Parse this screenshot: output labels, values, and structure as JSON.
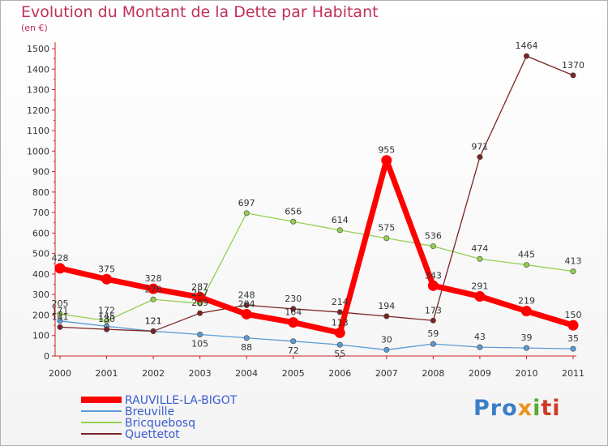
{
  "title": "Evolution du Montant de la Dette par Habitant",
  "subtitle": "(en €)",
  "logo": [
    "Pro",
    "x",
    "i",
    "ti"
  ],
  "chart_data": {
    "type": "line",
    "x": [
      "2000",
      "2001",
      "2002",
      "2003",
      "2004",
      "2005",
      "2006",
      "2007",
      "2008",
      "2009",
      "2010",
      "2011"
    ],
    "ylim": [
      0,
      1500
    ],
    "yticks": [
      0,
      100,
      200,
      300,
      400,
      500,
      600,
      700,
      800,
      900,
      1000,
      1100,
      1200,
      1300,
      1400,
      1500
    ],
    "grid": false,
    "legend_position": "bottom-left",
    "series": [
      {
        "name": "RAUVILLE-LA-BIGOT",
        "color": "#ff0000",
        "values": [
          428,
          375,
          328,
          287,
          204,
          164,
          113,
          955,
          343,
          291,
          219,
          150
        ]
      },
      {
        "name": "Breuville",
        "color": "#5b9bd5",
        "values": [
          171,
          145,
          121,
          105,
          88,
          72,
          55,
          30,
          59,
          43,
          39,
          35
        ]
      },
      {
        "name": "Bricquebosq",
        "color": "#92d050",
        "values": [
          205,
          172,
          276,
          257,
          697,
          656,
          614,
          575,
          536,
          474,
          445,
          413
        ]
      },
      {
        "name": "Quettetot",
        "color": "#7b2323",
        "values": [
          141,
          130,
          121,
          209,
          248,
          230,
          214,
          194,
          173,
          971,
          1464,
          1370
        ]
      }
    ],
    "labels": [
      {
        "text": "428",
        "x": 0,
        "y": 428
      },
      {
        "text": "375",
        "x": 1,
        "y": 375
      },
      {
        "text": "328",
        "x": 2,
        "y": 328
      },
      {
        "text": "287",
        "x": 3,
        "y": 287
      },
      {
        "text": "204",
        "x": 4,
        "y": 204
      },
      {
        "text": "164",
        "x": 5,
        "y": 164
      },
      {
        "text": "113",
        "x": 6,
        "y": 113
      },
      {
        "text": "955",
        "x": 7,
        "y": 955
      },
      {
        "text": "343",
        "x": 8,
        "y": 343
      },
      {
        "text": "291",
        "x": 9,
        "y": 291
      },
      {
        "text": "219",
        "x": 10,
        "y": 219
      },
      {
        "text": "150",
        "x": 11,
        "y": 150
      },
      {
        "text": "171",
        "x": 0,
        "y": 171
      },
      {
        "text": "145",
        "x": 1,
        "y": 145
      },
      {
        "text": "121",
        "x": 2,
        "y": 121
      },
      {
        "text": "105",
        "x": 3,
        "y": 105,
        "below": true
      },
      {
        "text": "88",
        "x": 4,
        "y": 88,
        "below": true
      },
      {
        "text": "72",
        "x": 5,
        "y": 72,
        "below": true
      },
      {
        "text": "55",
        "x": 6,
        "y": 55,
        "below": true
      },
      {
        "text": "30",
        "x": 7,
        "y": 30
      },
      {
        "text": "59",
        "x": 8,
        "y": 59
      },
      {
        "text": "43",
        "x": 9,
        "y": 43
      },
      {
        "text": "39",
        "x": 10,
        "y": 39
      },
      {
        "text": "35",
        "x": 11,
        "y": 35
      },
      {
        "text": "205",
        "x": 0,
        "y": 205
      },
      {
        "text": "172",
        "x": 1,
        "y": 172
      },
      {
        "text": "276",
        "x": 2,
        "y": 276
      },
      {
        "text": "257",
        "x": 3,
        "y": 257
      },
      {
        "text": "697",
        "x": 4,
        "y": 697
      },
      {
        "text": "656",
        "x": 5,
        "y": 656
      },
      {
        "text": "614",
        "x": 6,
        "y": 614
      },
      {
        "text": "575",
        "x": 7,
        "y": 575
      },
      {
        "text": "536",
        "x": 8,
        "y": 536
      },
      {
        "text": "474",
        "x": 9,
        "y": 474
      },
      {
        "text": "445",
        "x": 10,
        "y": 445
      },
      {
        "text": "413",
        "x": 11,
        "y": 413
      },
      {
        "text": "141",
        "x": 0,
        "y": 141
      },
      {
        "text": "130",
        "x": 1,
        "y": 130
      },
      {
        "text": "121",
        "x": 2,
        "y": 121
      },
      {
        "text": "209",
        "x": 3,
        "y": 209
      },
      {
        "text": "248",
        "x": 4,
        "y": 248
      },
      {
        "text": "230",
        "x": 5,
        "y": 230
      },
      {
        "text": "214",
        "x": 6,
        "y": 214
      },
      {
        "text": "194",
        "x": 7,
        "y": 194
      },
      {
        "text": "173",
        "x": 8,
        "y": 173
      },
      {
        "text": "971",
        "x": 9,
        "y": 971
      },
      {
        "text": "1464",
        "x": 10,
        "y": 1464
      },
      {
        "text": "1370",
        "x": 11,
        "y": 1370
      }
    ]
  }
}
